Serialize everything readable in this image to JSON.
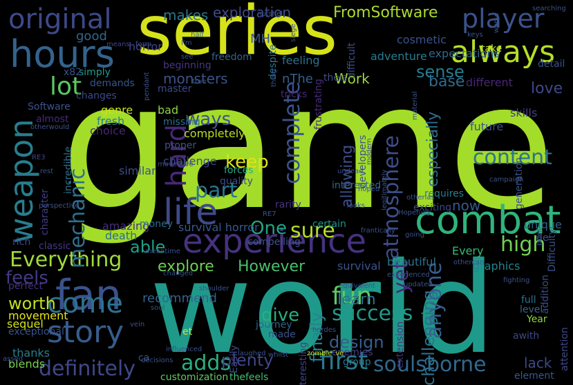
{
  "words": [
    {
      "text": "game",
      "color": "#a4dc2a"
    },
    {
      "text": "world",
      "color": "#1f9a8a"
    },
    {
      "text": "series",
      "color": "#d5e21a"
    },
    {
      "text": "combat",
      "color": "#2fb47c"
    },
    {
      "text": "experience",
      "color": "#46327e"
    },
    {
      "text": "hours",
      "color": "#33638d"
    },
    {
      "text": "fan",
      "color": "#3b528b"
    },
    {
      "text": "story",
      "color": "#365d8d"
    },
    {
      "text": "always",
      "color": "#b5de2b"
    },
    {
      "text": "original",
      "color": "#3e4989"
    },
    {
      "text": "player",
      "color": "#3b528b"
    },
    {
      "text": "weapon",
      "color": "#287d8e"
    },
    {
      "text": "life",
      "color": "#3e4a89"
    },
    {
      "text": "Everything",
      "color": "#a0da39"
    },
    {
      "text": "come",
      "color": "#2c728e"
    },
    {
      "text": "soulsborne",
      "color": "#31688e"
    },
    {
      "text": "adds",
      "color": "#2ab07f"
    },
    {
      "text": "definitely",
      "color": "#3f4889"
    },
    {
      "text": "hard",
      "color": "#482878"
    },
    {
      "text": "mechanic",
      "color": "#2d708e"
    },
    {
      "text": "complete",
      "color": "#3a538b"
    },
    {
      "text": "content",
      "color": "#2c728e"
    },
    {
      "text": "atmosphere",
      "color": "#3d4e8a"
    },
    {
      "text": "anyone",
      "color": "#365c8d"
    },
    {
      "text": "fun",
      "color": "#5ec962"
    },
    {
      "text": "first",
      "color": "#2a788e"
    },
    {
      "text": "success",
      "color": "#1e9b8a"
    },
    {
      "text": "lot",
      "color": "#5cc863"
    },
    {
      "text": "part",
      "color": "#2a768e"
    },
    {
      "text": "ways",
      "color": "#3a548c"
    },
    {
      "text": "sure",
      "color": "#b5de2b"
    },
    {
      "text": "keep",
      "color": "#dde318"
    },
    {
      "text": "One",
      "color": "#21a685"
    },
    {
      "text": "high",
      "color": "#73d056"
    },
    {
      "text": "design",
      "color": "#355f8d"
    },
    {
      "text": "plenty",
      "color": "#404688"
    },
    {
      "text": "challenging",
      "color": "#2d708e"
    },
    {
      "text": "finally",
      "color": "#25848e"
    },
    {
      "text": "give",
      "color": "#29af7f"
    },
    {
      "text": "worth",
      "color": "#c2df23"
    },
    {
      "text": "feels",
      "color": "#443a83"
    },
    {
      "text": "able",
      "color": "#1fa188"
    },
    {
      "text": "explore",
      "color": "#6ece58"
    },
    {
      "text": "However",
      "color": "#4ac16d"
    },
    {
      "text": "learn",
      "color": "#2d718e"
    },
    {
      "text": "recommend",
      "color": "#33638d"
    },
    {
      "text": "sense",
      "color": "#287d8e"
    },
    {
      "text": "love",
      "color": "#3e4989"
    },
    {
      "text": "especially",
      "color": "#2e6e8e"
    },
    {
      "text": "allowing",
      "color": "#3d4e8a"
    },
    {
      "text": "yet",
      "color": "#482878"
    },
    {
      "text": "now",
      "color": "#38588c"
    },
    {
      "text": "base",
      "color": "#2f6c8e"
    },
    {
      "text": "nThe",
      "color": "#35608d"
    },
    {
      "text": "Work",
      "color": "#9bd93c"
    },
    {
      "text": "makes",
      "color": "#2a788e"
    },
    {
      "text": "exploration",
      "color": "#3e4a89"
    },
    {
      "text": "FromSoftware",
      "color": "#aadc32"
    },
    {
      "text": "good",
      "color": "#31678e"
    },
    {
      "text": "monsters",
      "color": "#3b528b"
    },
    {
      "text": "MH",
      "color": "#3a548c"
    },
    {
      "text": "horror",
      "color": "#414487"
    },
    {
      "text": "survival horror",
      "color": "#38598c"
    },
    {
      "text": "sequel",
      "color": "#d2e21b"
    },
    {
      "text": "genre",
      "color": "#cae11f"
    },
    {
      "text": "bad",
      "color": "#8bd646"
    },
    {
      "text": "fresh",
      "color": "#29798e"
    },
    {
      "text": "choice",
      "color": "#482475"
    },
    {
      "text": "completely",
      "color": "#bddf26"
    },
    {
      "text": "challenge",
      "color": "#3f4788"
    },
    {
      "text": "similar",
      "color": "#3c4f8a"
    },
    {
      "text": "amazing",
      "color": "#472f7d"
    },
    {
      "text": "death",
      "color": "#2e6d8e"
    },
    {
      "text": "money",
      "color": "#2e6f8e"
    },
    {
      "text": "classic",
      "color": "#453882"
    },
    {
      "text": "rich",
      "color": "#3f4889"
    },
    {
      "text": "movement",
      "color": "#e5e419"
    },
    {
      "text": "exceptional",
      "color": "#3b528b"
    },
    {
      "text": "perfect",
      "color": "#46307e"
    },
    {
      "text": "thanks",
      "color": "#27808e"
    },
    {
      "text": "blends",
      "color": "#7ad151"
    },
    {
      "text": "customization",
      "color": "#63cb5f"
    },
    {
      "text": "thefeels",
      "color": "#44bf70"
    },
    {
      "text": "group",
      "color": "#2a788e"
    },
    {
      "text": "enemies",
      "color": "#433e85"
    },
    {
      "text": "lack",
      "color": "#3e4989"
    },
    {
      "text": "element",
      "color": "#38588c"
    },
    {
      "text": "interested",
      "color": "#31688e"
    },
    {
      "text": "developers",
      "color": "#3b528b"
    },
    {
      "text": "rarity",
      "color": "#463480"
    },
    {
      "text": "exciting",
      "color": "#3f4788"
    },
    {
      "text": "requires",
      "color": "#25838e"
    },
    {
      "text": "certain",
      "color": "#1f948c"
    },
    {
      "text": "compelling",
      "color": "#3b528b"
    },
    {
      "text": "survival",
      "color": "#3b528b"
    },
    {
      "text": "beautiful",
      "color": "#2b748e"
    },
    {
      "text": "Every",
      "color": "#38b977"
    },
    {
      "text": "graphics",
      "color": "#25838e"
    },
    {
      "text": "unique",
      "color": "#34618d"
    },
    {
      "text": "addition",
      "color": "#3c508b"
    },
    {
      "text": "future",
      "color": "#3b528b"
    },
    {
      "text": "skills",
      "color": "#414287"
    },
    {
      "text": "different",
      "color": "#482677"
    },
    {
      "text": "detail",
      "color": "#3a548c"
    },
    {
      "text": "take",
      "color": "#b8de29"
    },
    {
      "text": "expectations",
      "color": "#31688e"
    },
    {
      "text": "cosmetic",
      "color": "#3b528b"
    },
    {
      "text": "adventure",
      "color": "#287c8e"
    },
    {
      "text": "feeling",
      "color": "#2c728e"
    },
    {
      "text": "freedom",
      "color": "#32648e"
    },
    {
      "text": "tricks",
      "color": "#482878"
    },
    {
      "text": "theis",
      "color": "#3d4e8a"
    },
    {
      "text": "beginning",
      "color": "#453781"
    },
    {
      "text": "simply",
      "color": "#1f9e89"
    },
    {
      "text": "demands",
      "color": "#3a548c"
    },
    {
      "text": "master",
      "color": "#3e4a89"
    },
    {
      "text": "changes",
      "color": "#3f4889"
    },
    {
      "text": "Software",
      "color": "#3b528b"
    },
    {
      "text": "almost",
      "color": "#472c7a"
    },
    {
      "text": "incredible",
      "color": "#2d708e"
    },
    {
      "text": "character",
      "color": "#433d84"
    },
    {
      "text": "proper",
      "color": "#3b528b"
    },
    {
      "text": "missing",
      "color": "#2d718e"
    },
    {
      "text": "forces",
      "color": "#25ac82"
    },
    {
      "text": "quality",
      "color": "#3d4d8a"
    },
    {
      "text": "despite",
      "color": "#2b758e"
    },
    {
      "text": "difficult",
      "color": "#3d4e8a"
    },
    {
      "text": "frustrating",
      "color": "#472c7a"
    },
    {
      "text": "Difficulty",
      "color": "#3b528b"
    },
    {
      "text": "full",
      "color": "#2c728e"
    },
    {
      "text": "level",
      "color": "#32648e"
    },
    {
      "text": "Year",
      "color": "#8fd744"
    },
    {
      "text": "awith",
      "color": "#3e4989"
    },
    {
      "text": "attention",
      "color": "#3e4989"
    },
    {
      "text": "made",
      "color": "#3b528b"
    },
    {
      "text": "journey",
      "color": "#33628d"
    },
    {
      "text": "interesting",
      "color": "#414487"
    },
    {
      "text": "extension",
      "color": "#46337f"
    },
    {
      "text": "Easily",
      "color": "#3e4989"
    },
    {
      "text": "generation",
      "color": "#3b528b"
    },
    {
      "text": "x82",
      "color": "#3b528b"
    },
    {
      "text": "de",
      "color": "#3b528b"
    },
    {
      "text": "et",
      "color": "#dae319"
    },
    {
      "text": "ca",
      "color": "#3b528b"
    },
    {
      "text": "half",
      "color": "#31688e"
    },
    {
      "text": "pendant",
      "color": "#3b528b"
    },
    {
      "text": "thing",
      "color": "#3b528b"
    },
    {
      "text": "material",
      "color": "#3b528b"
    },
    {
      "text": "siege",
      "color": "#3b528b"
    },
    {
      "text": "campaign",
      "color": "#3b528b"
    },
    {
      "text": "fighting",
      "color": "#3b528b"
    },
    {
      "text": "means",
      "color": "#414487"
    },
    {
      "text": "form",
      "color": "#3b528b"
    },
    {
      "text": "keys",
      "color": "#3b528b"
    },
    {
      "text": "searching",
      "color": "#3b528b"
    },
    {
      "text": "nutshell",
      "color": "#3b528b"
    },
    {
      "text": "worse",
      "color": "#3b528b"
    },
    {
      "text": "I'm",
      "color": "#3b528b"
    },
    {
      "text": "see",
      "color": "#3b528b"
    },
    {
      "text": "true",
      "color": "#3b528b"
    },
    {
      "text": "otherwould",
      "color": "#3b528b"
    },
    {
      "text": "RE3",
      "color": "#414487"
    },
    {
      "text": "rest",
      "color": "#3b528b"
    },
    {
      "text": "moved",
      "color": "#3b528b"
    },
    {
      "text": "live",
      "color": "#3b528b"
    },
    {
      "text": "undead",
      "color": "#3b528b"
    },
    {
      "text": "modern",
      "color": "#3b528b"
    },
    {
      "text": "legitimately",
      "color": "#3b528b"
    },
    {
      "text": "perspective",
      "color": "#3b528b"
    },
    {
      "text": "hoped",
      "color": "#3b528b"
    },
    {
      "text": "looks",
      "color": "#3b528b"
    },
    {
      "text": "otherlas",
      "color": "#3b528b"
    },
    {
      "text": "Hopefully",
      "color": "#3b528b"
    },
    {
      "text": "frantically",
      "color": "#3b528b"
    },
    {
      "text": "going",
      "color": "#3b528b"
    },
    {
      "text": "point",
      "color": "#3b528b"
    },
    {
      "text": "RE7",
      "color": "#3b528b"
    },
    {
      "text": "meantime",
      "color": "#3b528b"
    },
    {
      "text": "othercan",
      "color": "#3b528b"
    },
    {
      "text": "changed",
      "color": "#3b528b"
    },
    {
      "text": "shoulder",
      "color": "#3b528b"
    },
    {
      "text": "equivalent",
      "color": "#3b528b"
    },
    {
      "text": "experienced",
      "color": "#3b528b"
    },
    {
      "text": "updated",
      "color": "#3b528b"
    },
    {
      "text": "soul",
      "color": "#3b528b"
    },
    {
      "text": "vein",
      "color": "#3b528b"
    },
    {
      "text": "influenced",
      "color": "#3b528b"
    },
    {
      "text": "laughed",
      "color": "#3b528b"
    },
    {
      "text": "whilst",
      "color": "#3b528b"
    },
    {
      "text": "hordes",
      "color": "#3b528b"
    },
    {
      "text": "zombie´ve",
      "color": "#c8e020"
    },
    {
      "text": "decisions",
      "color": "#3b528b"
    },
    {
      "text": "assed",
      "color": "#3b528b"
    }
  ]
}
